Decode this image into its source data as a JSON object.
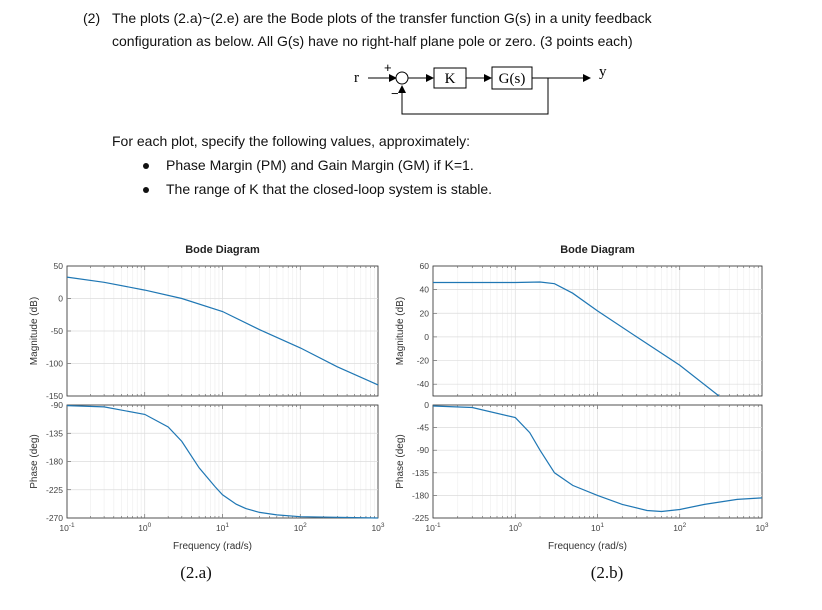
{
  "question": {
    "number": "(2)",
    "line1": "The plots (2.a)~(2.e) are the Bode plots of the transfer function G(s) in a unity feedback",
    "line2": "configuration as below.   All G(s) have no right-half plane pole or zero.  (3 points each)"
  },
  "block_diagram": {
    "input": "r",
    "plus": "+",
    "minus": "−",
    "gain": "K",
    "plant": "G(s)",
    "output": "y"
  },
  "instructions": {
    "intro": "For each plot, specify the following values, approximately:",
    "bullets": [
      "Phase Margin (PM) and Gain Margin (GM) if K=1.",
      "The range of K that the closed-loop system is stable."
    ]
  },
  "chart_data": [
    {
      "type": "line",
      "title": "Bode Diagram",
      "caption": "(2.a)",
      "xlabel": "Frequency (rad/s)",
      "xscale": "log",
      "xlim": [
        0.1,
        1000
      ],
      "x_ticks": [
        {
          "base": "10",
          "exp": "-1"
        },
        {
          "base": "10",
          "exp": "0"
        },
        {
          "base": "10",
          "exp": "1"
        },
        {
          "base": "10",
          "exp": "2"
        },
        {
          "base": "10",
          "exp": "3"
        }
      ],
      "magnitude": {
        "ylabel": "Magnitude (dB)",
        "ylim": [
          -150,
          50
        ],
        "yticks": [
          50,
          0,
          -50,
          -100,
          -150
        ],
        "x": [
          0.1,
          0.3,
          1,
          3,
          10,
          30,
          100,
          300,
          1000
        ],
        "y": [
          33,
          25,
          13,
          0,
          -20,
          -48,
          -76,
          -105,
          -133
        ]
      },
      "phase": {
        "ylabel": "Phase (deg)",
        "ylim": [
          -270,
          -90
        ],
        "yticks": [
          -90,
          -135,
          -180,
          -225,
          -270
        ],
        "x": [
          0.1,
          0.3,
          1,
          2,
          3,
          5,
          8,
          10,
          15,
          20,
          30,
          50,
          100,
          1000
        ],
        "y": [
          -91,
          -93,
          -105,
          -125,
          -148,
          -190,
          -220,
          -233,
          -248,
          -255,
          -261,
          -265,
          -268,
          -270
        ]
      },
      "grid": true,
      "color": "#1f77b4"
    },
    {
      "type": "line",
      "title": "Bode Diagram",
      "caption": "(2.b)",
      "xlabel": "Frequency (rad/s)",
      "xscale": "log",
      "xlim": [
        0.1,
        1000
      ],
      "x_ticks": [
        {
          "base": "10",
          "exp": "-1"
        },
        {
          "base": "10",
          "exp": "0"
        },
        {
          "base": "10",
          "exp": "1"
        },
        {
          "base": "10",
          "exp": "2"
        },
        {
          "base": "10",
          "exp": "3"
        }
      ],
      "magnitude": {
        "ylabel": "Magnitude (dB)",
        "ylim": [
          -50,
          60
        ],
        "yticks": [
          60,
          40,
          20,
          0,
          -20,
          -40
        ],
        "x": [
          0.1,
          0.5,
          1,
          2,
          3,
          5,
          10,
          30,
          100,
          300
        ],
        "y": [
          46,
          46,
          46,
          46.5,
          45,
          37,
          22,
          0,
          -24,
          -50
        ]
      },
      "phase": {
        "ylabel": "Phase (deg)",
        "ylim": [
          -225,
          0
        ],
        "yticks": [
          0,
          -45,
          -90,
          -135,
          -180,
          -225
        ],
        "x": [
          0.1,
          0.3,
          1,
          1.5,
          2,
          3,
          5,
          10,
          20,
          40,
          60,
          100,
          200,
          500,
          1000
        ],
        "y": [
          -2,
          -5,
          -25,
          -55,
          -90,
          -135,
          -160,
          -180,
          -198,
          -210,
          -212,
          -208,
          -198,
          -188,
          -185
        ]
      },
      "grid": true,
      "color": "#1f77b4"
    }
  ]
}
